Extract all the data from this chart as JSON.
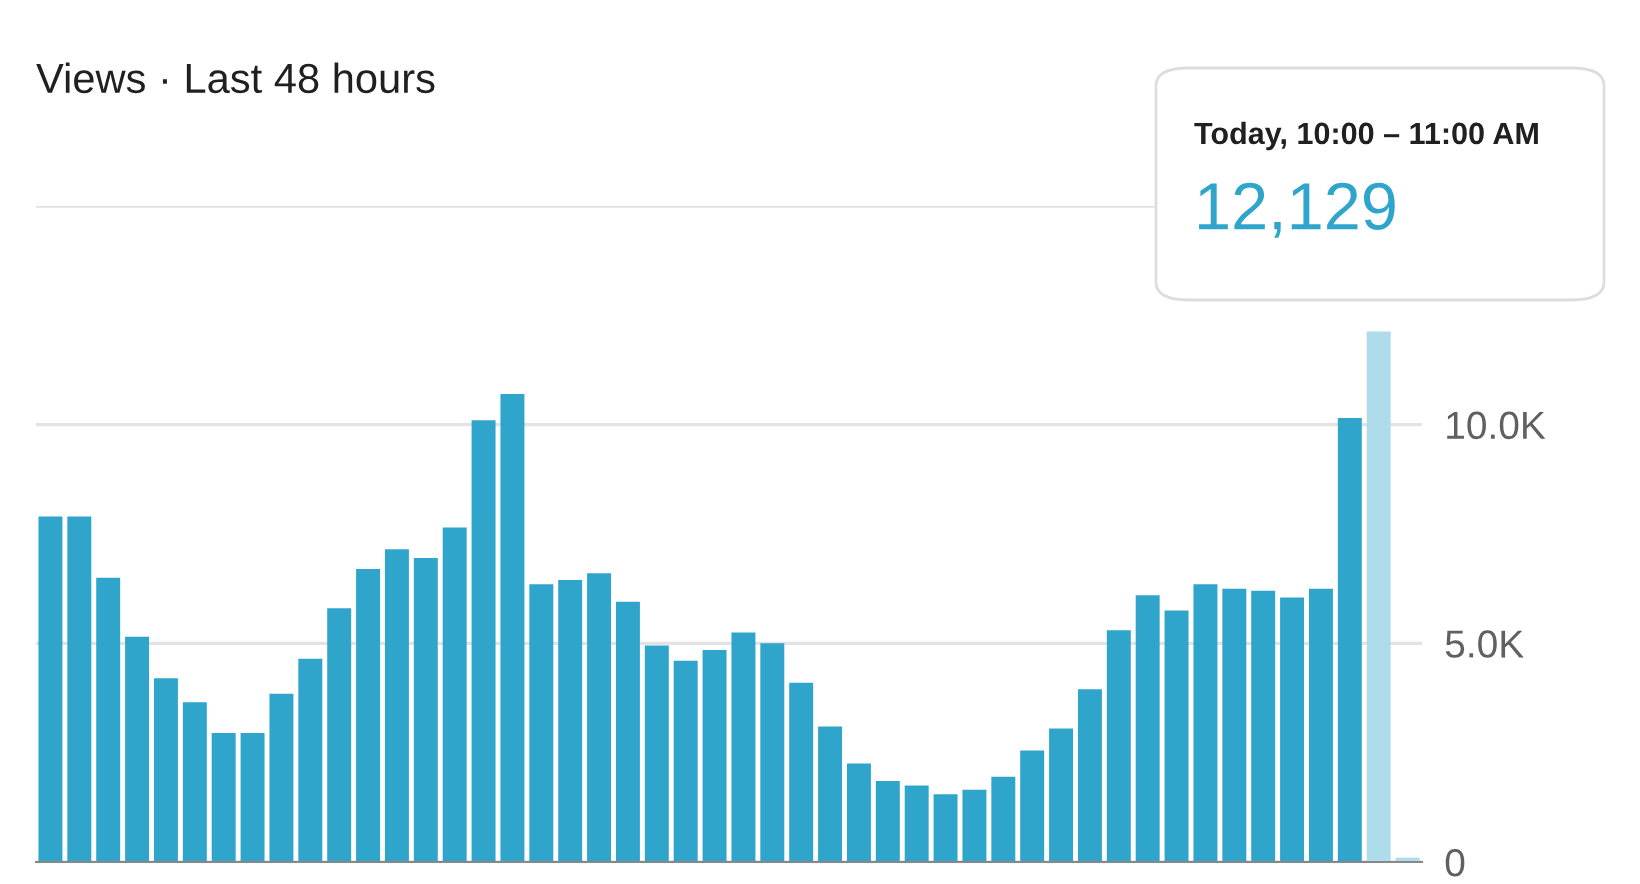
{
  "chart_data": {
    "type": "bar",
    "title": "Views · Last 48 hours",
    "categories": [
      null,
      null,
      null,
      null,
      null,
      null,
      null,
      null,
      null,
      null,
      null,
      null,
      null,
      null,
      null,
      null,
      null,
      null,
      null,
      null,
      null,
      null,
      null,
      null,
      null,
      null,
      null,
      null,
      null,
      null,
      null,
      null,
      null,
      null,
      null,
      null,
      null,
      null,
      null,
      null,
      null,
      null,
      null,
      null,
      null,
      null,
      null,
      null
    ],
    "values": [
      7900,
      7900,
      6500,
      5150,
      4200,
      3650,
      2950,
      2950,
      3850,
      4650,
      5800,
      6700,
      7150,
      6950,
      7650,
      10100,
      10700,
      6350,
      6450,
      6600,
      5950,
      4950,
      4600,
      4850,
      5250,
      5000,
      4100,
      3100,
      2250,
      1850,
      1750,
      1550,
      1650,
      1950,
      2550,
      3050,
      3950,
      5300,
      6100,
      5750,
      6350,
      6250,
      6200,
      6050,
      6250,
      10150,
      12129,
      100
    ],
    "colors": [
      "#30a5cc",
      "#30a5cc",
      "#30a5cc",
      "#30a5cc",
      "#30a5cc",
      "#30a5cc",
      "#30a5cc",
      "#30a5cc",
      "#30a5cc",
      "#30a5cc",
      "#30a5cc",
      "#30a5cc",
      "#30a5cc",
      "#30a5cc",
      "#30a5cc",
      "#30a5cc",
      "#30a5cc",
      "#30a5cc",
      "#30a5cc",
      "#30a5cc",
      "#30a5cc",
      "#30a5cc",
      "#30a5cc",
      "#30a5cc",
      "#30a5cc",
      "#30a5cc",
      "#30a5cc",
      "#30a5cc",
      "#30a5cc",
      "#30a5cc",
      "#30a5cc",
      "#30a5cc",
      "#30a5cc",
      "#30a5cc",
      "#30a5cc",
      "#30a5cc",
      "#30a5cc",
      "#30a5cc",
      "#30a5cc",
      "#30a5cc",
      "#30a5cc",
      "#30a5cc",
      "#30a5cc",
      "#30a5cc",
      "#30a5cc",
      "#30a5cc",
      "#aedcea",
      "#aedcea"
    ],
    "ylim": [
      0,
      15000
    ],
    "yticks": [
      0,
      {
        "value": 5000,
        "label": "5.0K"
      },
      {
        "value": 10000,
        "label": "10.0K"
      },
      {
        "value": 15000,
        "label": null
      }
    ],
    "grid": "y",
    "annotations": [
      "Today, 10:00 – 11:00 AM",
      "12,129"
    ]
  }
}
